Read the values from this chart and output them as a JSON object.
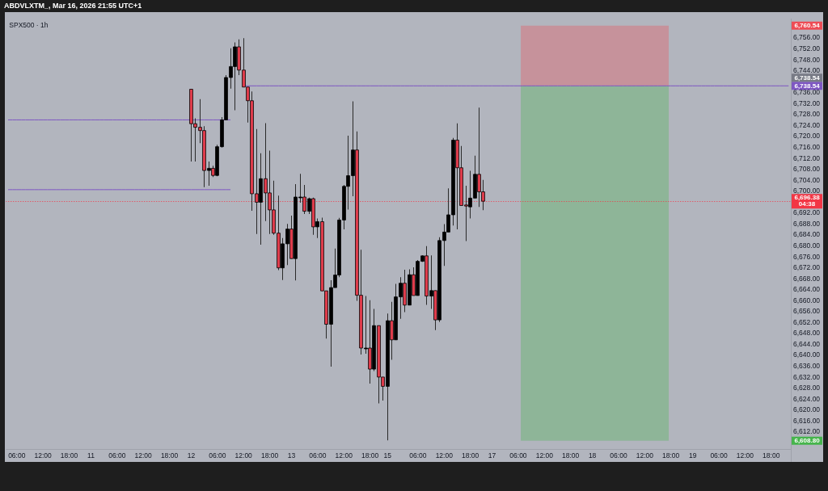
{
  "chart_data": {
    "type": "candlestick",
    "title": "SPX500 · 1h",
    "annotations": [
      "ABDVLXTM_, Mar 16, 2026 21:55 UTC+1",
      "6,738.54",
      "6,760.54",
      "6,608.80"
    ],
    "categories": [
      null,
      null,
      "06:00",
      null,
      null,
      null,
      null,
      null,
      "12:00",
      null,
      null,
      null,
      null,
      null,
      "18:00",
      null,
      null,
      null,
      null,
      "11",
      null,
      null,
      null,
      null,
      null,
      "06:00",
      null,
      null,
      null,
      null,
      null,
      "12:00",
      null,
      null,
      null,
      null,
      null,
      "18:00",
      null,
      null,
      null,
      null,
      "12",
      null,
      null,
      null,
      null,
      null,
      "06:00",
      null,
      null,
      null,
      null,
      null,
      "12:00",
      null,
      null,
      null,
      null,
      null,
      "18:00",
      null,
      null,
      null,
      null,
      "13",
      null,
      null,
      null,
      null,
      null,
      "06:00",
      null,
      null,
      null,
      null,
      null,
      "12:00",
      null,
      null,
      null,
      null,
      null,
      "18:00",
      null,
      null,
      null,
      "15",
      null,
      null,
      null,
      null,
      null,
      null,
      "06:00",
      null,
      null,
      null,
      null,
      null,
      "12:00",
      null,
      null,
      null,
      null,
      null,
      "18:00",
      null,
      null,
      null,
      null,
      "17",
      null,
      null,
      null,
      null,
      null,
      "06:00",
      null,
      null,
      null,
      null,
      null,
      "12:00",
      null,
      null,
      null,
      null,
      null,
      "18:00",
      null,
      null,
      null,
      null,
      "18",
      null,
      null,
      null,
      null,
      null,
      "06:00",
      null,
      null,
      null,
      null,
      null,
      "12:00",
      null,
      null,
      null,
      null,
      null,
      "18:00",
      null,
      null,
      null,
      null,
      "19",
      null,
      null,
      null,
      null,
      null,
      "06:00",
      null,
      null,
      null,
      null,
      null,
      "12:00",
      null,
      null,
      null,
      null,
      null,
      "18:00",
      null,
      null,
      null,
      null
    ],
    "ohlc": [
      null,
      null,
      null,
      null,
      null,
      null,
      null,
      null,
      null,
      null,
      null,
      null,
      null,
      null,
      null,
      null,
      null,
      null,
      null,
      null,
      null,
      null,
      null,
      null,
      null,
      null,
      null,
      null,
      null,
      null,
      null,
      null,
      null,
      null,
      null,
      null,
      null,
      null,
      null,
      null,
      null,
      null,
      [
        6737.3,
        6737.3,
        6710.9,
        6724.7
      ],
      [
        6724.7,
        6726.7,
        6710.9,
        6723.4
      ],
      [
        6723.4,
        6733.7,
        6717.6,
        6722.2
      ],
      [
        6722.2,
        6723.8,
        6701.5,
        6707.6
      ],
      [
        6707.6,
        6710.9,
        6702.0,
        6708.4
      ],
      [
        6708.4,
        6709.3,
        6705.2,
        6705.8
      ],
      [
        6705.8,
        6717.0,
        6705.5,
        6716.3
      ],
      [
        6716.3,
        6727.1,
        6716.0,
        6726.1
      ],
      [
        6726.1,
        6742.5,
        6726.0,
        6741.6
      ],
      [
        6741.6,
        6752.3,
        6737.5,
        6745.6
      ],
      [
        6745.6,
        6754.4,
        6729.6,
        6752.8
      ],
      [
        6752.8,
        6755.5,
        6742.5,
        6744.3
      ],
      [
        6744.3,
        6756.0,
        6738.1,
        6738.1
      ],
      [
        6738.1,
        6738.1,
        6725.1,
        6733.1
      ],
      [
        6733.1,
        6736.5,
        6692.9,
        6699.1
      ],
      [
        6699.1,
        6722.8,
        6684.4,
        6696.0
      ],
      [
        6696.0,
        6713.9,
        6680.5,
        6704.6
      ],
      [
        6704.6,
        6724.9,
        6689.1,
        6699.4
      ],
      [
        6699.4,
        6714.9,
        6684.4,
        6693.2
      ],
      [
        6693.2,
        6703.9,
        6684.1,
        6684.7
      ],
      [
        6684.7,
        6698.4,
        6671.2,
        6672.0
      ],
      [
        6672.0,
        6682.9,
        6667.6,
        6680.8
      ],
      [
        6680.8,
        6688.1,
        6673.0,
        6686.2
      ],
      [
        6686.2,
        6691.1,
        6675.4,
        6675.4
      ],
      [
        6675.4,
        6702.6,
        6667.4,
        6697.9
      ],
      [
        6697.9,
        6706.4,
        6695.8,
        6697.9
      ],
      [
        6697.9,
        6702.3,
        6691.7,
        6692.7
      ],
      [
        6692.7,
        6697.7,
        6691.7,
        6697.3
      ],
      [
        6697.3,
        6697.7,
        6684.1,
        6687.0
      ],
      [
        6687.0,
        6690.1,
        6682.9,
        6688.9
      ],
      [
        6688.9,
        6690.4,
        6663.6,
        6663.6
      ],
      [
        6663.6,
        6663.6,
        6646.2,
        6651.4
      ],
      [
        6651.4,
        6667.5,
        6635.9,
        6664.8
      ],
      [
        6664.8,
        6679.1,
        6664.8,
        6669.4
      ],
      [
        6669.4,
        6690.3,
        6668.6,
        6689.5
      ],
      [
        6689.5,
        6702.3,
        6686.1,
        6701.8
      ],
      [
        6701.8,
        6720.3,
        6693.3,
        6705.7
      ],
      [
        6705.7,
        6732.9,
        6698.2,
        6715.1
      ],
      [
        6715.1,
        6721.9,
        6660.0,
        6662.0
      ],
      [
        6662.0,
        6678.6,
        6640.3,
        6642.7
      ],
      [
        6642.7,
        6661.7,
        6640.6,
        6642.7
      ],
      [
        6642.7,
        6660.2,
        6629.7,
        6635.0
      ],
      [
        6635.0,
        6657.0,
        6634.3,
        6650.9
      ],
      [
        6650.9,
        6650.9,
        6622.5,
        6632.1
      ],
      [
        6632.1,
        6632.1,
        6623.5,
        6628.7
      ],
      [
        6628.7,
        6655.3,
        6609.0,
        6652.7
      ],
      [
        6652.7,
        6659.6,
        6638.4,
        6645.7
      ],
      [
        6645.7,
        6666.2,
        6645.7,
        6661.4
      ],
      [
        6661.4,
        6668.6,
        6653.4,
        6666.4
      ],
      [
        6666.4,
        6671.3,
        6655.8,
        6658.4
      ],
      [
        6658.4,
        6671.5,
        6658.4,
        6669.5
      ],
      [
        6669.5,
        6672.2,
        6661.9,
        6661.9
      ],
      [
        6661.9,
        6674.9,
        6661.9,
        6674.4
      ],
      [
        6674.4,
        6676.6,
        6674.2,
        6676.4
      ],
      [
        6676.4,
        6680.0,
        6658.5,
        6661.7
      ],
      [
        6661.7,
        6676.6,
        6657.0,
        6663.7
      ],
      [
        6663.7,
        6663.7,
        6649.3,
        6653.0
      ],
      [
        6653.0,
        6683.2,
        6652.2,
        6682.0
      ],
      [
        6682.0,
        6688.0,
        6672.7,
        6685.1
      ],
      [
        6685.1,
        6701.1,
        6685.1,
        6691.4
      ],
      [
        6691.4,
        6719.5,
        6687.5,
        6718.7
      ],
      [
        6718.7,
        6724.8,
        6686.1,
        6708.6
      ],
      [
        6708.6,
        6716.6,
        6694.8,
        6694.8
      ],
      [
        6695.0,
        6702.0,
        6681.8,
        6694.6
      ],
      [
        6694.3,
        6707.5,
        6690.1,
        6697.5
      ],
      [
        6697.5,
        6713.0,
        6697.5,
        6706.2
      ],
      [
        6706.2,
        6730.6,
        6694.3,
        6699.8
      ],
      [
        6699.8,
        6704.2,
        6693.1,
        6696.38
      ],
      null,
      null,
      null,
      null,
      null,
      null,
      null,
      null,
      null,
      null,
      null,
      null,
      null,
      null,
      null,
      null,
      null,
      null,
      null,
      null,
      null,
      null,
      null,
      null,
      null,
      null,
      null,
      null,
      null,
      null,
      null,
      null,
      null,
      null,
      null,
      null,
      null,
      null,
      null,
      null,
      null,
      null,
      null,
      null,
      null,
      null,
      null,
      null,
      null,
      null,
      null,
      null,
      null,
      null,
      null,
      null,
      null,
      null,
      null,
      null,
      null,
      null,
      null,
      null,
      null,
      null,
      null,
      null,
      null,
      null
    ],
    "colors": [
      null,
      null,
      null,
      null,
      null,
      null,
      null,
      null,
      null,
      null,
      null,
      null,
      null,
      null,
      null,
      null,
      null,
      null,
      null,
      null,
      null,
      null,
      null,
      null,
      null,
      null,
      null,
      null,
      null,
      null,
      null,
      null,
      null,
      null,
      null,
      null,
      null,
      null,
      null,
      null,
      null,
      null,
      "#e23d4d",
      "#e23d4d",
      "#e23d4d",
      "#e23d4d",
      "#000000",
      "#e23d4d",
      "#000000",
      "#000000",
      "#000000",
      "#000000",
      "#000000",
      "#e23d4d",
      "#e23d4d",
      "#e23d4d",
      "#e23d4d",
      "#e23d4d",
      "#000000",
      "#e23d4d",
      "#e23d4d",
      "#e23d4d",
      "#e23d4d",
      "#000000",
      "#000000",
      "#e23d4d",
      "#000000",
      "#000000",
      "#e23d4d",
      "#000000",
      "#e23d4d",
      "#000000",
      "#e23d4d",
      "#e23d4d",
      "#000000",
      "#000000",
      "#000000",
      "#000000",
      "#000000",
      "#000000",
      "#e23d4d",
      "#e23d4d",
      "#000000",
      "#e23d4d",
      "#000000",
      "#e23d4d",
      "#e23d4d",
      "#000000",
      "#e23d4d",
      "#000000",
      "#000000",
      "#e23d4d",
      "#000000",
      "#e23d4d",
      "#000000",
      "#000000",
      "#e23d4d",
      "#000000",
      "#e23d4d",
      "#000000",
      "#000000",
      "#000000",
      "#000000",
      "#e23d4d",
      "#e23d4d",
      "#e23d4d",
      "#000000",
      "#000000",
      "#e23d4d",
      "#e23d4d",
      null,
      null,
      null,
      null,
      null,
      null,
      null,
      null,
      null,
      null,
      null,
      null,
      null,
      null,
      null,
      null,
      null,
      null,
      null,
      null,
      null,
      null,
      null,
      null,
      null,
      null,
      null,
      null,
      null,
      null,
      null,
      null,
      null,
      null,
      null,
      null,
      null,
      null,
      null,
      null,
      null,
      null,
      null,
      null,
      null,
      null,
      null,
      null,
      null,
      null,
      null,
      null,
      null,
      null,
      null,
      null,
      null,
      null,
      null,
      null,
      null,
      null,
      null,
      null,
      null,
      null,
      null,
      null,
      null,
      null
    ],
    "series": [
      {
        "type": "line",
        "color": "#7e57c2",
        "values": [
          null,
          null,
          null,
          null,
          null,
          null,
          null,
          null,
          null,
          null,
          null,
          null,
          null,
          null,
          null,
          null,
          null,
          null,
          null,
          null,
          null,
          null,
          null,
          null,
          null,
          null,
          null,
          null,
          null,
          null,
          null,
          null,
          null,
          null,
          null,
          null,
          null,
          null,
          null,
          null,
          null,
          null,
          null,
          null,
          null,
          null,
          null,
          null,
          null,
          null,
          null,
          null,
          null,
          null,
          6738.54,
          6738.54,
          6738.54,
          6738.54,
          6738.54,
          6738.54,
          6738.54,
          6738.54,
          6738.54,
          6738.54,
          6738.54,
          6738.54,
          6738.54,
          6738.54,
          6738.54,
          6738.54,
          6738.54,
          6738.54,
          6738.54,
          6738.54,
          6738.54,
          6738.54,
          6738.54,
          6738.54,
          6738.54,
          6738.54,
          6738.54,
          6738.54,
          6738.54,
          6738.54,
          6738.54,
          6738.54,
          6738.54,
          6738.54,
          6738.54,
          6738.54,
          6738.54,
          6738.54,
          6738.54,
          6738.54,
          6738.54,
          6738.54,
          6738.54,
          6738.54,
          6738.54,
          6738.54,
          6738.54,
          6738.54,
          6738.54,
          6738.54,
          6738.54,
          6738.54,
          6738.54,
          6738.54,
          6738.54,
          6738.54,
          6738.54,
          6738.54,
          6738.54,
          6738.54,
          6738.54,
          6738.54,
          6738.54,
          6738.54,
          6738.54,
          6738.54,
          6738.54,
          6738.54,
          6738.54,
          6738.54,
          6738.54,
          6738.54,
          6738.54,
          6738.54,
          6738.54,
          6738.54,
          6738.54,
          6738.54,
          6738.54,
          6738.54,
          6738.54,
          6738.54,
          6738.54,
          6738.54,
          6738.54,
          6738.54,
          6738.54,
          6738.54,
          6738.54,
          6738.54,
          6738.54,
          6738.54,
          6738.54,
          6738.54,
          6738.54,
          6738.54,
          6738.54,
          6738.54,
          6738.54,
          6738.54,
          6738.54,
          6738.54,
          6738.54,
          6738.54,
          6738.54,
          6738.54,
          6738.54,
          6738.54,
          6738.54,
          6738.54,
          6738.54,
          6738.54,
          6738.54,
          6738.54,
          6738.54,
          6738.54,
          6738.54,
          6738.54,
          6738.54,
          6738.54,
          6738.54,
          6738.54,
          6738.54,
          6738.54,
          6738.54,
          6738.54
        ],
        "value_labels": [
          null,
          null,
          null,
          null,
          null,
          null,
          null,
          null,
          null,
          null,
          null,
          null,
          null,
          null,
          null,
          null,
          null,
          null,
          null,
          null,
          null,
          null,
          null,
          null,
          null,
          null,
          null,
          null,
          null,
          null,
          null,
          null,
          null,
          null,
          null,
          null,
          null,
          null,
          null,
          null,
          null,
          null,
          null,
          null,
          null,
          null,
          null,
          null,
          null,
          null,
          null,
          null,
          null,
          null,
          null,
          null,
          null,
          null,
          null,
          null,
          null,
          null,
          null,
          null,
          null,
          null,
          null,
          null,
          null,
          null,
          null,
          null,
          null,
          null,
          null,
          null,
          null,
          null,
          null,
          null,
          null,
          null,
          null,
          null,
          null,
          null,
          null,
          null,
          null,
          null,
          null,
          null,
          null,
          null,
          null,
          null,
          null,
          null,
          null,
          null,
          null,
          null,
          null,
          null,
          null,
          null,
          null,
          null,
          null,
          null,
          null,
          null,
          null,
          null,
          null,
          null,
          null,
          null,
          null,
          null,
          null,
          null,
          null,
          null,
          null,
          null,
          null,
          null,
          null,
          null,
          null,
          null,
          null,
          null,
          null,
          null,
          null,
          null,
          null,
          null,
          null,
          null,
          null,
          null,
          null,
          null,
          null,
          null,
          null,
          null,
          null,
          null,
          null,
          null,
          null,
          null,
          null,
          null,
          null,
          null,
          null,
          null,
          null,
          null,
          null,
          null,
          null,
          null,
          null,
          null,
          null,
          null,
          null,
          null,
          null,
          null,
          null,
          null,
          null,
          "6,738.54"
        ]
      },
      {
        "type": "line",
        "color": "#7e57c2",
        "values": [
          6726.1,
          6726.1,
          6726.1,
          6726.1,
          6726.1,
          6726.1,
          6726.1,
          6726.1,
          6726.1,
          6726.1,
          6726.1,
          6726.1,
          6726.1,
          6726.1,
          6726.1,
          6726.1,
          6726.1,
          6726.1,
          6726.1,
          6726.1,
          6726.1,
          6726.1,
          6726.1,
          6726.1,
          6726.1,
          6726.1,
          6726.1,
          6726.1,
          6726.1,
          6726.1,
          6726.1,
          6726.1,
          6726.1,
          6726.1,
          6726.1,
          6726.1,
          6726.1,
          6726.1,
          6726.1,
          6726.1,
          6726.1,
          6726.1,
          6726.1,
          6726.1,
          6726.1,
          6726.1,
          6726.1,
          6726.1,
          6726.1,
          6726.1,
          6726.1,
          6726.1,
          null,
          null,
          null,
          null,
          null,
          null,
          null,
          null,
          null,
          null,
          null,
          null,
          null,
          null,
          null,
          null,
          null,
          null,
          null,
          null,
          null,
          null,
          null,
          null,
          null,
          null,
          null,
          null,
          null,
          null,
          null,
          null,
          null,
          null,
          null,
          null,
          null,
          null,
          null,
          null,
          null,
          null,
          null,
          null,
          null,
          null,
          null,
          null,
          null,
          null,
          null,
          null,
          null,
          null,
          null,
          null,
          null,
          null,
          null,
          null,
          null,
          null,
          null,
          null,
          null,
          null,
          null,
          null,
          null,
          null,
          null,
          null,
          null,
          null,
          null,
          null,
          null,
          null,
          null,
          null,
          null,
          null,
          null,
          null,
          null,
          null,
          null,
          null,
          null,
          null,
          null,
          null,
          null,
          null,
          null,
          null,
          null,
          null,
          null,
          null,
          null,
          null,
          null,
          null,
          null,
          null,
          null,
          null,
          null,
          null,
          null,
          null,
          null,
          null,
          null,
          null,
          null,
          null,
          null,
          null,
          null,
          null,
          null,
          null,
          null,
          null,
          null,
          null
        ]
      },
      {
        "type": "line",
        "color": "#7e57c2",
        "values": [
          6700.6,
          6700.6,
          6700.6,
          6700.6,
          6700.6,
          6700.6,
          6700.6,
          6700.6,
          6700.6,
          6700.6,
          6700.6,
          6700.6,
          6700.6,
          6700.6,
          6700.6,
          6700.6,
          6700.6,
          6700.6,
          6700.6,
          6700.6,
          6700.6,
          6700.6,
          6700.6,
          6700.6,
          6700.6,
          6700.6,
          6700.6,
          6700.6,
          6700.6,
          6700.6,
          6700.6,
          6700.6,
          6700.6,
          6700.6,
          6700.6,
          6700.6,
          6700.6,
          6700.6,
          6700.6,
          6700.6,
          6700.6,
          6700.6,
          6700.6,
          6700.6,
          6700.6,
          6700.6,
          6700.6,
          6700.6,
          6700.6,
          6700.6,
          6700.6,
          6700.6,
          null,
          null,
          null,
          null,
          null,
          null,
          null,
          null,
          null,
          null,
          null,
          null,
          null,
          null,
          null,
          null,
          null,
          null,
          null,
          null,
          null,
          null,
          null,
          null,
          null,
          null,
          null,
          null,
          null,
          null,
          null,
          null,
          null,
          null,
          null,
          null,
          null,
          null,
          null,
          null,
          null,
          null,
          null,
          null,
          null,
          null,
          null,
          null,
          null,
          null,
          null,
          null,
          null,
          null,
          null,
          null,
          null,
          null,
          null,
          null,
          null,
          null,
          null,
          null,
          null,
          null,
          null,
          null,
          null,
          null,
          null,
          null,
          null,
          null,
          null,
          null,
          null,
          null,
          null,
          null,
          null,
          null,
          null,
          null,
          null,
          null,
          null,
          null,
          null,
          null,
          null,
          null,
          null,
          null,
          null,
          null,
          null,
          null,
          null,
          null,
          null,
          null,
          null,
          null,
          null,
          null,
          null,
          null,
          null,
          null,
          null,
          null,
          null,
          null,
          null,
          null,
          null,
          null,
          null,
          null,
          null,
          null,
          null,
          null,
          null,
          null,
          null,
          null
        ]
      }
    ],
    "ylim": [
      6605.8,
      6763.1
    ],
    "yticks": [
      {
        "value": 6612,
        "label": "6,612.00"
      },
      {
        "value": 6616,
        "label": "6,616.00"
      },
      {
        "value": 6620,
        "label": "6,620.00"
      },
      {
        "value": 6624,
        "label": "6,624.00"
      },
      {
        "value": 6628,
        "label": "6,628.00"
      },
      {
        "value": 6632,
        "label": "6,632.00"
      },
      {
        "value": 6636,
        "label": "6,636.00"
      },
      {
        "value": 6640,
        "label": "6,640.00"
      },
      {
        "value": 6644,
        "label": "6,644.00"
      },
      {
        "value": 6648,
        "label": "6,648.00"
      },
      {
        "value": 6652,
        "label": "6,652.00"
      },
      {
        "value": 6656,
        "label": "6,656.00"
      },
      {
        "value": 6660,
        "label": "6,660.00"
      },
      {
        "value": 6664,
        "label": "6,664.00"
      },
      {
        "value": 6668,
        "label": "6,668.00"
      },
      {
        "value": 6672,
        "label": "6,672.00"
      },
      {
        "value": 6676,
        "label": "6,676.00"
      },
      {
        "value": 6680,
        "label": "6,680.00"
      },
      {
        "value": 6684,
        "label": "6,684.00"
      },
      {
        "value": 6688,
        "label": "6,688.00"
      },
      {
        "value": 6692,
        "label": "6,692.00"
      },
      {
        "value": 6700,
        "label": "6,700.00"
      },
      {
        "value": 6704,
        "label": "6,704.00"
      },
      {
        "value": 6708,
        "label": "6,708.00"
      },
      {
        "value": 6712,
        "label": "6,712.00"
      },
      {
        "value": 6716,
        "label": "6,716.00"
      },
      {
        "value": 6720,
        "label": "6,720.00"
      },
      {
        "value": 6724,
        "label": "6,724.00"
      },
      {
        "value": 6728,
        "label": "6,728.00"
      },
      {
        "value": 6732,
        "label": "6,732.00"
      },
      {
        "value": 6736,
        "label": "6,736.00"
      },
      {
        "value": 6744,
        "label": "6,744.00"
      },
      {
        "value": 6748,
        "label": "6,748.00"
      },
      {
        "value": 6752,
        "label": "6,752.00"
      },
      {
        "value": 6756,
        "label": "6,756.00"
      }
    ],
    "ref_lines": [
      {
        "axis": "y",
        "value": 6696.38,
        "label": "6,696.38\n04:38",
        "color": "#f23645",
        "line_style": "dotted"
      }
    ],
    "bands": [
      {
        "axis": "y",
        "from": 6738.54,
        "to": 6760.54,
        "color": "#c6929b"
      },
      {
        "axis": "y",
        "from": 6738.54,
        "to": 6608.8,
        "color": "#8eb598"
      }
    ]
  }
}
